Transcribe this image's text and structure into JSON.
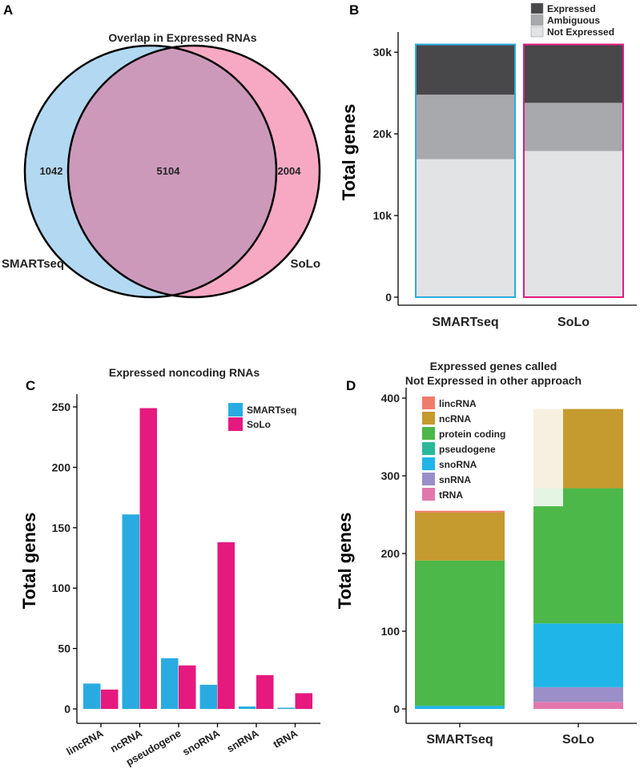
{
  "chart_data": [
    {
      "panel": "A",
      "type": "venn",
      "title": "Overlap in Expressed RNAs",
      "sets": [
        {
          "name": "SMARTseq",
          "only": 1042,
          "color": "#b3d9f2"
        },
        {
          "name": "SoLo",
          "only": 2004,
          "color": "#f7a9c4"
        }
      ],
      "overlap": 5104,
      "overlap_color": "#cc99bb"
    },
    {
      "panel": "B",
      "type": "bar",
      "stacked": true,
      "title": "",
      "ylabel": "Total genes",
      "categories": [
        "SMARTseq",
        "SoLo"
      ],
      "category_outline_colors": [
        "#29abe2",
        "#e6197e"
      ],
      "ylim": [
        0,
        31000
      ],
      "yticks": [
        0,
        10000,
        20000,
        30000
      ],
      "ytick_labels": [
        "0",
        "10k",
        "20k",
        "30k"
      ],
      "legend_position": "top-right",
      "series": [
        {
          "name": "Not Expressed",
          "color": "#e2e3e5",
          "values": [
            16900,
            17900
          ]
        },
        {
          "name": "Ambiguous",
          "color": "#a8a9ac",
          "values": [
            7900,
            5900
          ]
        },
        {
          "name": "Expressed",
          "color": "#48484a",
          "values": [
            6150,
            7150
          ]
        }
      ],
      "legend_order": [
        "Expressed",
        "Ambiguous",
        "Not Expressed"
      ]
    },
    {
      "panel": "C",
      "type": "bar",
      "stacked": false,
      "title": "Expressed noncoding RNAs",
      "ylabel": "Total genes",
      "categories": [
        "lincRNA",
        "ncRNA",
        "pseudogene",
        "snoRNA",
        "snRNA",
        "tRNA"
      ],
      "ylim": [
        0,
        262
      ],
      "yticks": [
        0,
        50,
        100,
        150,
        200,
        250
      ],
      "legend_position": "top-right",
      "series": [
        {
          "name": "SMARTseq",
          "color": "#29abe2",
          "values": [
            21,
            161,
            42,
            20,
            2,
            1
          ]
        },
        {
          "name": "SoLo",
          "color": "#e6197e",
          "values": [
            16,
            249,
            36,
            138,
            28,
            13
          ]
        }
      ]
    },
    {
      "panel": "D",
      "type": "bar",
      "stacked": true,
      "title": "Expressed genes called\nNot Expressed in other approach",
      "title_lines": [
        "Expressed genes called",
        "Not Expressed in other approach"
      ],
      "ylabel": "Total genes",
      "categories": [
        "SMARTseq",
        "SoLo"
      ],
      "ylim": [
        0,
        400
      ],
      "yticks": [
        0,
        100,
        200,
        300,
        400
      ],
      "legend_position": "top-left",
      "series": [
        {
          "name": "tRNA",
          "color": "#e377ad",
          "values": [
            0,
            9
          ]
        },
        {
          "name": "snRNA",
          "color": "#9a8fc8",
          "values": [
            0,
            19
          ]
        },
        {
          "name": "snoRNA",
          "color": "#1fb5e8",
          "values": [
            4,
            82
          ]
        },
        {
          "name": "pseudogene",
          "color": "#2ab89a",
          "values": [
            0,
            0
          ]
        },
        {
          "name": "protein coding",
          "color": "#4cb849",
          "values": [
            187,
            174
          ]
        },
        {
          "name": "ncRNA",
          "color": "#c59a2e",
          "values": [
            62,
            102
          ]
        },
        {
          "name": "lincRNA",
          "color": "#f07c6c",
          "values": [
            2,
            0
          ]
        }
      ],
      "legend_order": [
        "lincRNA",
        "ncRNA",
        "protein coding",
        "pseudogene",
        "snoRNA",
        "snRNA",
        "tRNA"
      ]
    }
  ],
  "panel_letters": {
    "a": "A",
    "b": "B",
    "c": "C",
    "d": "D"
  }
}
